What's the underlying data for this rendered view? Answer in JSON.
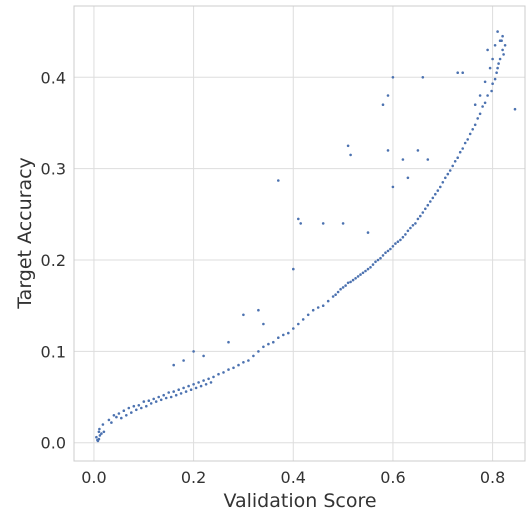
{
  "chart_data": {
    "type": "scatter",
    "xlabel": "Validation Score",
    "ylabel": "Target Accuracy",
    "xlim": [
      -0.04,
      0.865
    ],
    "ylim": [
      -0.02,
      0.478
    ],
    "grid": true,
    "x_ticks": [
      "0.0",
      "0.2",
      "0.4",
      "0.6",
      "0.8"
    ],
    "y_ticks": [
      "0.0",
      "0.1",
      "0.2",
      "0.3",
      "0.4"
    ],
    "series": [
      {
        "color": "#4c72b0",
        "points": [
          [
            0.01,
            0.004
          ],
          [
            0.008,
            0.002
          ],
          [
            0.012,
            0.008
          ],
          [
            0.005,
            0.006
          ],
          [
            0.01,
            0.012
          ],
          [
            0.015,
            0.01
          ],
          [
            0.007,
            0.003
          ],
          [
            0.011,
            0.015
          ],
          [
            0.02,
            0.012
          ],
          [
            0.018,
            0.02
          ],
          [
            0.03,
            0.025
          ],
          [
            0.035,
            0.022
          ],
          [
            0.04,
            0.03
          ],
          [
            0.045,
            0.028
          ],
          [
            0.05,
            0.032
          ],
          [
            0.055,
            0.027
          ],
          [
            0.06,
            0.035
          ],
          [
            0.065,
            0.03
          ],
          [
            0.07,
            0.038
          ],
          [
            0.075,
            0.033
          ],
          [
            0.08,
            0.04
          ],
          [
            0.085,
            0.036
          ],
          [
            0.09,
            0.041
          ],
          [
            0.095,
            0.038
          ],
          [
            0.1,
            0.045
          ],
          [
            0.105,
            0.04
          ],
          [
            0.11,
            0.046
          ],
          [
            0.115,
            0.043
          ],
          [
            0.12,
            0.048
          ],
          [
            0.125,
            0.045
          ],
          [
            0.13,
            0.05
          ],
          [
            0.135,
            0.047
          ],
          [
            0.14,
            0.052
          ],
          [
            0.145,
            0.049
          ],
          [
            0.15,
            0.055
          ],
          [
            0.155,
            0.05
          ],
          [
            0.16,
            0.056
          ],
          [
            0.165,
            0.052
          ],
          [
            0.17,
            0.058
          ],
          [
            0.175,
            0.054
          ],
          [
            0.18,
            0.06
          ],
          [
            0.185,
            0.056
          ],
          [
            0.19,
            0.062
          ],
          [
            0.195,
            0.058
          ],
          [
            0.2,
            0.064
          ],
          [
            0.205,
            0.06
          ],
          [
            0.21,
            0.066
          ],
          [
            0.215,
            0.062
          ],
          [
            0.22,
            0.068
          ],
          [
            0.225,
            0.064
          ],
          [
            0.23,
            0.07
          ],
          [
            0.235,
            0.066
          ],
          [
            0.24,
            0.072
          ],
          [
            0.25,
            0.075
          ],
          [
            0.26,
            0.077
          ],
          [
            0.27,
            0.08
          ],
          [
            0.28,
            0.082
          ],
          [
            0.29,
            0.085
          ],
          [
            0.3,
            0.088
          ],
          [
            0.31,
            0.09
          ],
          [
            0.32,
            0.095
          ],
          [
            0.33,
            0.1
          ],
          [
            0.34,
            0.105
          ],
          [
            0.35,
            0.108
          ],
          [
            0.36,
            0.11
          ],
          [
            0.37,
            0.115
          ],
          [
            0.38,
            0.118
          ],
          [
            0.39,
            0.12
          ],
          [
            0.4,
            0.125
          ],
          [
            0.41,
            0.13
          ],
          [
            0.42,
            0.135
          ],
          [
            0.43,
            0.14
          ],
          [
            0.44,
            0.145
          ],
          [
            0.45,
            0.148
          ],
          [
            0.46,
            0.15
          ],
          [
            0.47,
            0.155
          ],
          [
            0.48,
            0.16
          ],
          [
            0.49,
            0.165
          ],
          [
            0.5,
            0.17
          ],
          [
            0.51,
            0.175
          ],
          [
            0.52,
            0.178
          ],
          [
            0.53,
            0.182
          ],
          [
            0.54,
            0.186
          ],
          [
            0.55,
            0.19
          ],
          [
            0.56,
            0.195
          ],
          [
            0.57,
            0.2
          ],
          [
            0.58,
            0.205
          ],
          [
            0.59,
            0.21
          ],
          [
            0.6,
            0.215
          ],
          [
            0.61,
            0.22
          ],
          [
            0.62,
            0.225
          ],
          [
            0.63,
            0.232
          ],
          [
            0.64,
            0.238
          ],
          [
            0.65,
            0.245
          ],
          [
            0.66,
            0.252
          ],
          [
            0.67,
            0.26
          ],
          [
            0.68,
            0.268
          ],
          [
            0.69,
            0.276
          ],
          [
            0.7,
            0.285
          ],
          [
            0.71,
            0.294
          ],
          [
            0.72,
            0.303
          ],
          [
            0.73,
            0.312
          ],
          [
            0.74,
            0.322
          ],
          [
            0.75,
            0.332
          ],
          [
            0.76,
            0.343
          ],
          [
            0.77,
            0.355
          ],
          [
            0.78,
            0.368
          ],
          [
            0.79,
            0.38
          ],
          [
            0.8,
            0.393
          ],
          [
            0.81,
            0.41
          ],
          [
            0.815,
            0.42
          ],
          [
            0.82,
            0.43
          ],
          [
            0.818,
            0.44
          ],
          [
            0.812,
            0.415
          ],
          [
            0.808,
            0.405
          ],
          [
            0.822,
            0.425
          ],
          [
            0.825,
            0.435
          ],
          [
            0.805,
            0.398
          ],
          [
            0.798,
            0.385
          ],
          [
            0.785,
            0.372
          ],
          [
            0.775,
            0.36
          ],
          [
            0.765,
            0.348
          ],
          [
            0.755,
            0.338
          ],
          [
            0.745,
            0.328
          ],
          [
            0.735,
            0.318
          ],
          [
            0.725,
            0.308
          ],
          [
            0.715,
            0.298
          ],
          [
            0.705,
            0.29
          ],
          [
            0.695,
            0.28
          ],
          [
            0.685,
            0.272
          ],
          [
            0.675,
            0.264
          ],
          [
            0.665,
            0.256
          ],
          [
            0.655,
            0.248
          ],
          [
            0.645,
            0.24
          ],
          [
            0.635,
            0.235
          ],
          [
            0.625,
            0.228
          ],
          [
            0.615,
            0.222
          ],
          [
            0.605,
            0.218
          ],
          [
            0.595,
            0.212
          ],
          [
            0.585,
            0.208
          ],
          [
            0.575,
            0.202
          ],
          [
            0.565,
            0.198
          ],
          [
            0.555,
            0.192
          ],
          [
            0.545,
            0.188
          ],
          [
            0.535,
            0.184
          ],
          [
            0.525,
            0.18
          ],
          [
            0.515,
            0.176
          ],
          [
            0.505,
            0.172
          ],
          [
            0.495,
            0.168
          ],
          [
            0.485,
            0.162
          ],
          [
            0.6,
            0.4
          ],
          [
            0.59,
            0.38
          ],
          [
            0.58,
            0.37
          ],
          [
            0.66,
            0.4
          ],
          [
            0.73,
            0.405
          ],
          [
            0.74,
            0.405
          ],
          [
            0.845,
            0.365
          ],
          [
            0.37,
            0.287
          ],
          [
            0.41,
            0.245
          ],
          [
            0.415,
            0.24
          ],
          [
            0.46,
            0.24
          ],
          [
            0.51,
            0.325
          ],
          [
            0.515,
            0.315
          ],
          [
            0.59,
            0.32
          ],
          [
            0.62,
            0.31
          ],
          [
            0.65,
            0.32
          ],
          [
            0.67,
            0.31
          ],
          [
            0.6,
            0.28
          ],
          [
            0.63,
            0.29
          ],
          [
            0.55,
            0.23
          ],
          [
            0.5,
            0.24
          ],
          [
            0.4,
            0.19
          ],
          [
            0.3,
            0.14
          ],
          [
            0.33,
            0.145
          ],
          [
            0.34,
            0.13
          ],
          [
            0.2,
            0.1
          ],
          [
            0.16,
            0.085
          ],
          [
            0.18,
            0.09
          ],
          [
            0.22,
            0.095
          ],
          [
            0.27,
            0.11
          ],
          [
            0.81,
            0.45
          ],
          [
            0.815,
            0.44
          ],
          [
            0.79,
            0.43
          ],
          [
            0.8,
            0.42
          ],
          [
            0.82,
            0.445
          ],
          [
            0.805,
            0.435
          ],
          [
            0.795,
            0.41
          ],
          [
            0.785,
            0.395
          ],
          [
            0.775,
            0.38
          ],
          [
            0.765,
            0.37
          ]
        ]
      }
    ]
  }
}
